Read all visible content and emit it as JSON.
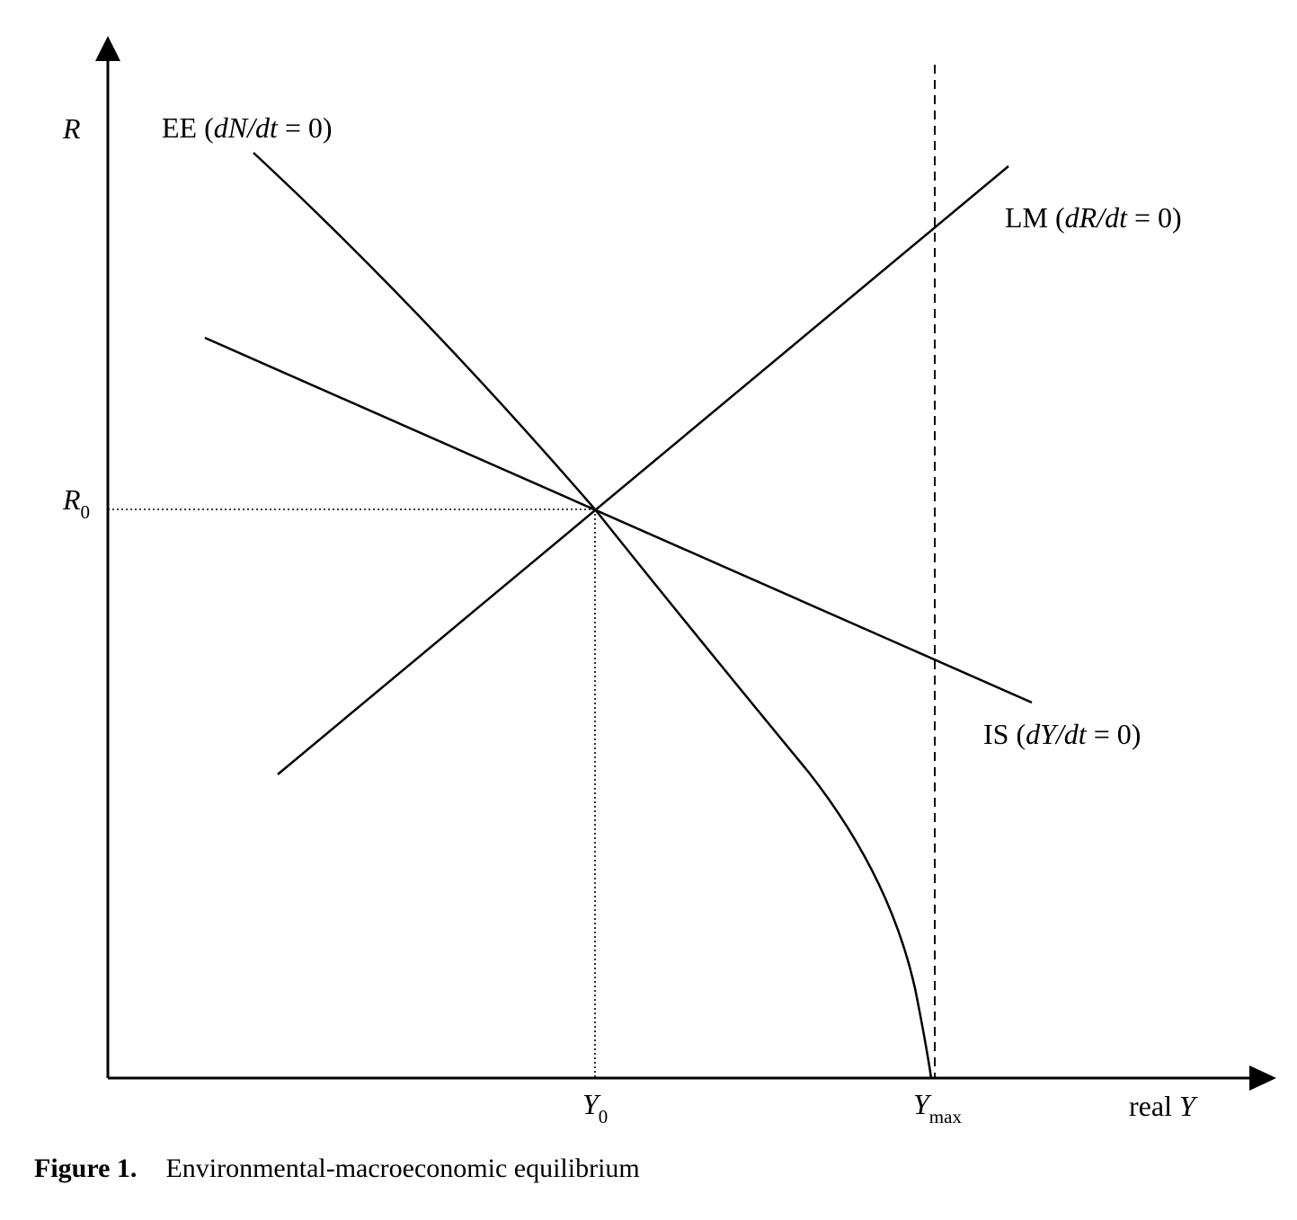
{
  "axes": {
    "y_label": "R",
    "x_label_prefix": "real ",
    "x_label_var": "Y"
  },
  "ticks": {
    "r0_base": "R",
    "r0_sub": "0",
    "y0_base": "Y",
    "y0_sub": "0",
    "ymax_base": "Y",
    "ymax_sub": "max"
  },
  "curves": {
    "ee": {
      "name": "EE",
      "condition_var": "dN/dt",
      "condition_rest": " = 0)"
    },
    "lm": {
      "name": "LM",
      "condition_var": "dR/dt",
      "condition_rest": " = 0)"
    },
    "is": {
      "name": "IS",
      "condition_var": "dY/dt",
      "condition_rest": " = 0)"
    }
  },
  "caption": {
    "number": "Figure 1.",
    "text": "Environmental-macroeconomic equilibrium"
  },
  "colors": {
    "ink": "#000000",
    "background": "#ffffff"
  }
}
